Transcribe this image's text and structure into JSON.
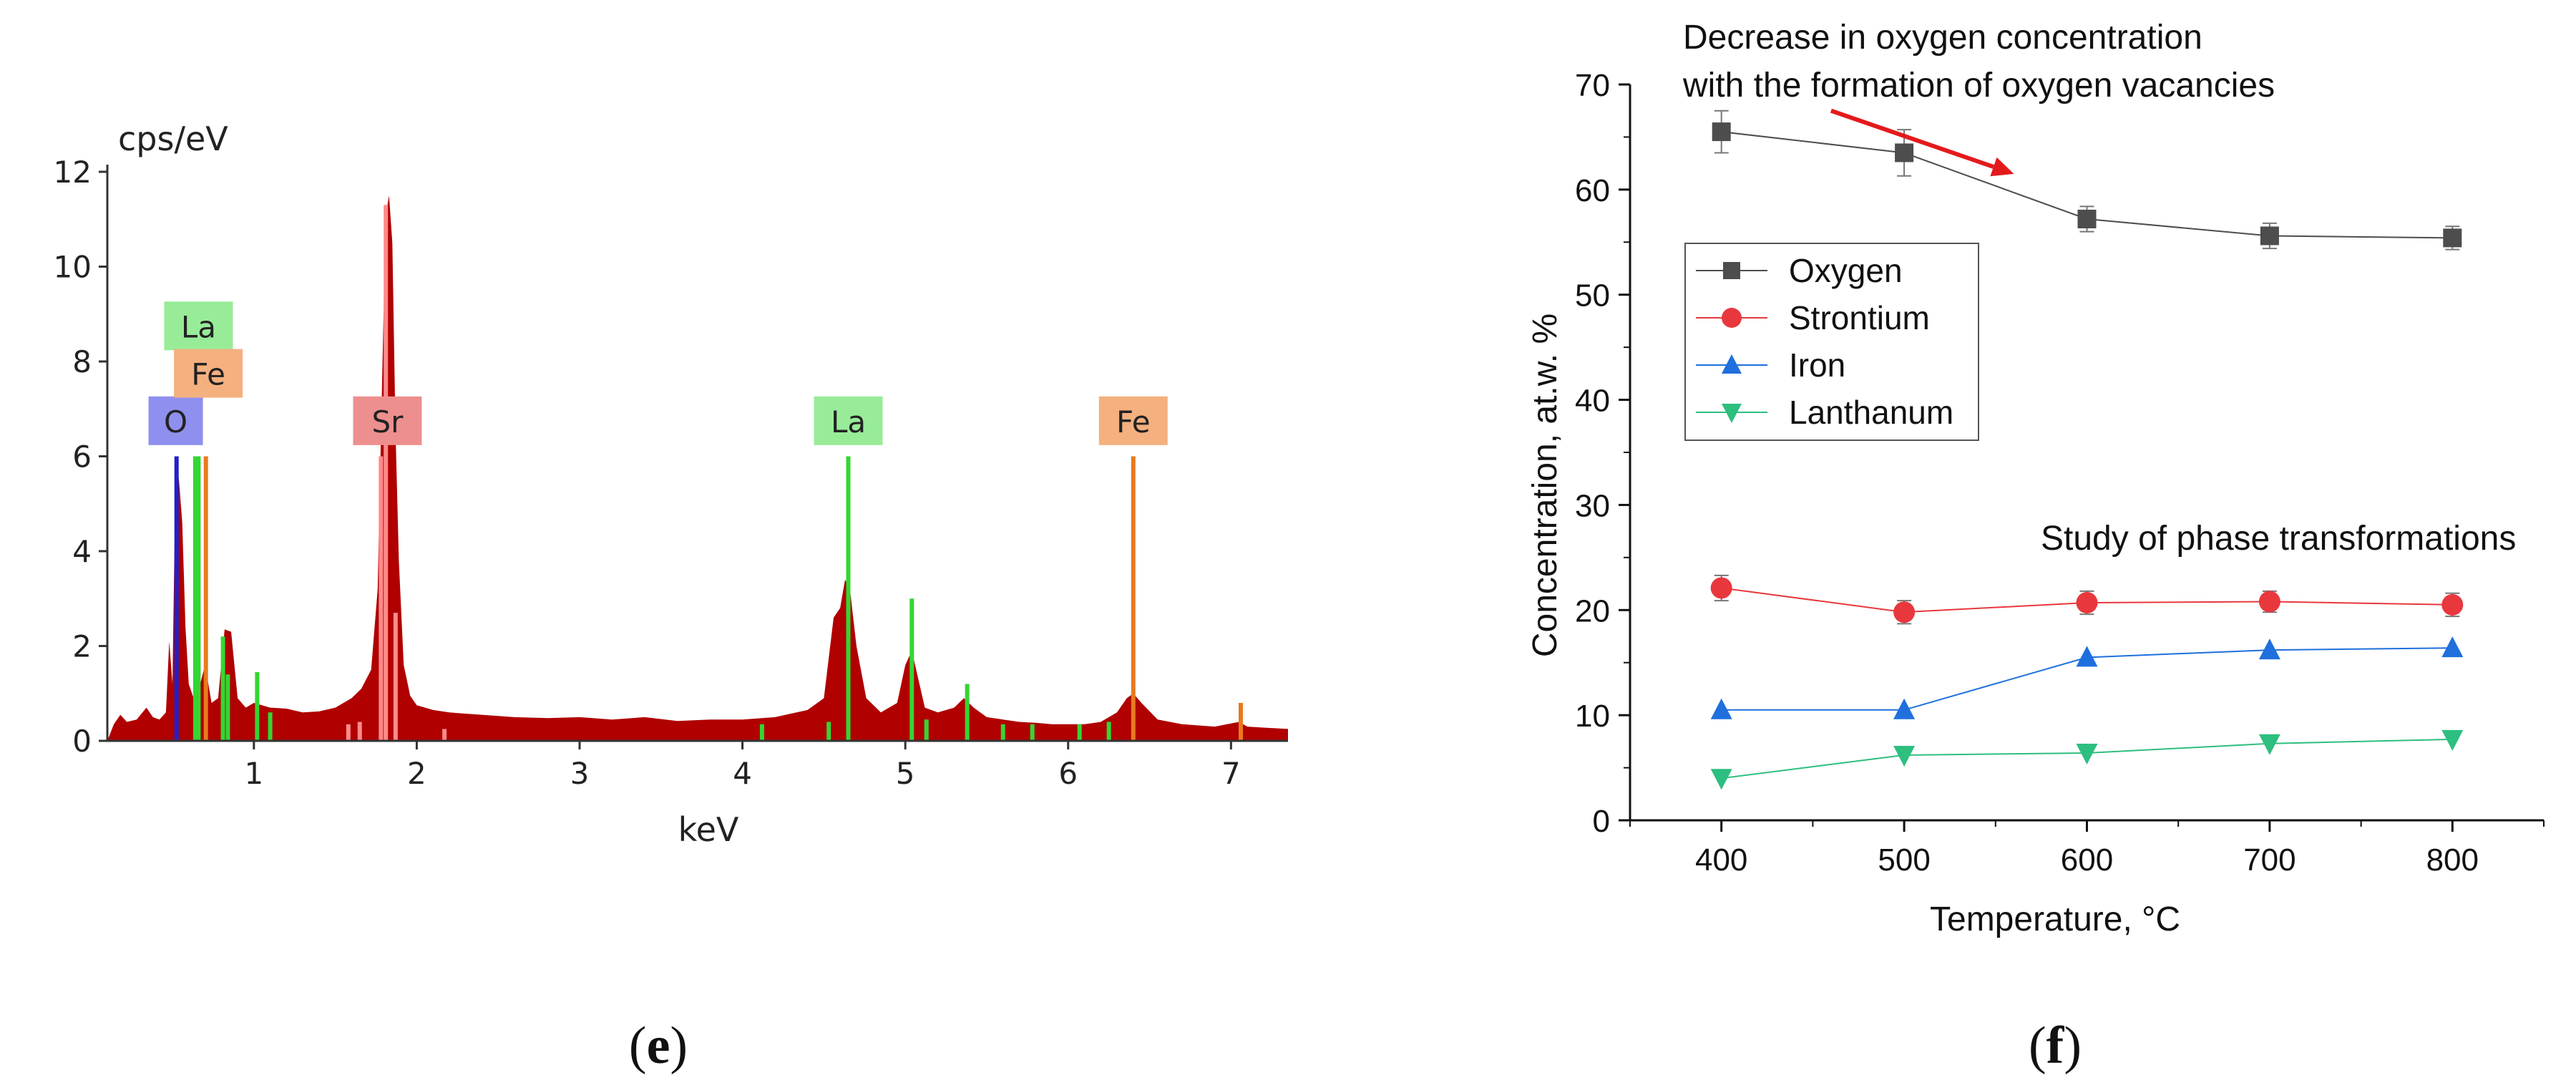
{
  "colors": {
    "eds_fill": "#b00000",
    "oxygen": "#4d4d4d",
    "strontium": "#e8383d",
    "iron": "#1f6fdd",
    "lanthanum": "#2dbf7f",
    "arrow": "#e31a1c",
    "line_O": "#2020c8",
    "line_La": "#33d633",
    "line_Fe": "#e87a1e",
    "line_Sr": "#ff8a8a"
  },
  "chart_data": [
    {
      "type": "area",
      "panel_caption": "e",
      "title": "",
      "ylabel": "cps/eV",
      "xlabel": "keV",
      "xlim": [
        0.1,
        7.35
      ],
      "ylim": [
        0,
        12
      ],
      "x_ticks": [
        1,
        2,
        3,
        4,
        5,
        6,
        7
      ],
      "y_ticks": [
        0,
        2,
        4,
        6,
        8,
        10,
        12
      ],
      "spectrum": [
        [
          0.1,
          0.0
        ],
        [
          0.14,
          0.35
        ],
        [
          0.18,
          0.55
        ],
        [
          0.22,
          0.4
        ],
        [
          0.28,
          0.45
        ],
        [
          0.34,
          0.7
        ],
        [
          0.38,
          0.5
        ],
        [
          0.42,
          0.45
        ],
        [
          0.46,
          0.6
        ],
        [
          0.48,
          2.1
        ],
        [
          0.5,
          1.2
        ],
        [
          0.52,
          5.9
        ],
        [
          0.54,
          5.5
        ],
        [
          0.56,
          4.6
        ],
        [
          0.58,
          2.4
        ],
        [
          0.6,
          1.2
        ],
        [
          0.64,
          0.8
        ],
        [
          0.7,
          1.6
        ],
        [
          0.74,
          0.8
        ],
        [
          0.78,
          0.9
        ],
        [
          0.82,
          2.35
        ],
        [
          0.86,
          2.3
        ],
        [
          0.9,
          0.9
        ],
        [
          0.95,
          0.7
        ],
        [
          1.0,
          0.8
        ],
        [
          1.1,
          0.7
        ],
        [
          1.2,
          0.68
        ],
        [
          1.3,
          0.6
        ],
        [
          1.4,
          0.62
        ],
        [
          1.5,
          0.7
        ],
        [
          1.6,
          0.9
        ],
        [
          1.66,
          1.1
        ],
        [
          1.72,
          1.5
        ],
        [
          1.76,
          3.2
        ],
        [
          1.79,
          8.0
        ],
        [
          1.81,
          11.1
        ],
        [
          1.83,
          11.5
        ],
        [
          1.85,
          10.5
        ],
        [
          1.87,
          6.5
        ],
        [
          1.89,
          3.8
        ],
        [
          1.92,
          1.6
        ],
        [
          1.96,
          0.95
        ],
        [
          2.0,
          0.75
        ],
        [
          2.1,
          0.65
        ],
        [
          2.2,
          0.6
        ],
        [
          2.4,
          0.55
        ],
        [
          2.6,
          0.5
        ],
        [
          2.8,
          0.48
        ],
        [
          3.0,
          0.5
        ],
        [
          3.2,
          0.45
        ],
        [
          3.4,
          0.5
        ],
        [
          3.6,
          0.42
        ],
        [
          3.8,
          0.45
        ],
        [
          4.0,
          0.45
        ],
        [
          4.2,
          0.5
        ],
        [
          4.4,
          0.65
        ],
        [
          4.5,
          0.9
        ],
        [
          4.56,
          2.6
        ],
        [
          4.6,
          2.8
        ],
        [
          4.63,
          3.4
        ],
        [
          4.66,
          3.2
        ],
        [
          4.7,
          2.0
        ],
        [
          4.76,
          0.9
        ],
        [
          4.85,
          0.6
        ],
        [
          4.95,
          0.8
        ],
        [
          5.0,
          1.6
        ],
        [
          5.04,
          1.9
        ],
        [
          5.08,
          1.3
        ],
        [
          5.12,
          0.7
        ],
        [
          5.2,
          0.6
        ],
        [
          5.3,
          0.7
        ],
        [
          5.36,
          0.9
        ],
        [
          5.42,
          0.7
        ],
        [
          5.5,
          0.5
        ],
        [
          5.6,
          0.45
        ],
        [
          5.7,
          0.4
        ],
        [
          5.8,
          0.38
        ],
        [
          5.9,
          0.35
        ],
        [
          6.0,
          0.35
        ],
        [
          6.1,
          0.35
        ],
        [
          6.2,
          0.4
        ],
        [
          6.3,
          0.6
        ],
        [
          6.36,
          0.9
        ],
        [
          6.4,
          1.0
        ],
        [
          6.45,
          0.8
        ],
        [
          6.55,
          0.45
        ],
        [
          6.7,
          0.35
        ],
        [
          6.9,
          0.3
        ],
        [
          7.05,
          0.4
        ],
        [
          7.1,
          0.3
        ],
        [
          7.2,
          0.28
        ],
        [
          7.35,
          0.25
        ]
      ],
      "element_lines": [
        {
          "element": "O",
          "energy": 0.525,
          "height": 6.0
        },
        {
          "element": "La",
          "energy": 0.64,
          "height": 6.0
        },
        {
          "element": "La",
          "energy": 0.66,
          "height": 6.0
        },
        {
          "element": "Fe",
          "energy": 0.705,
          "height": 6.0
        },
        {
          "element": "La",
          "energy": 0.81,
          "height": 2.2
        },
        {
          "element": "La",
          "energy": 0.84,
          "height": 1.4
        },
        {
          "element": "La",
          "energy": 1.02,
          "height": 1.45
        },
        {
          "element": "La",
          "energy": 1.1,
          "height": 0.6
        },
        {
          "element": "Sr",
          "energy": 1.58,
          "height": 0.35
        },
        {
          "element": "Sr",
          "energy": 1.65,
          "height": 0.4
        },
        {
          "element": "Sr",
          "energy": 1.78,
          "height": 6.0
        },
        {
          "element": "Sr",
          "energy": 1.81,
          "height": 11.3
        },
        {
          "element": "Sr",
          "energy": 1.87,
          "height": 2.7
        },
        {
          "element": "Sr",
          "energy": 2.17,
          "height": 0.25
        },
        {
          "element": "La",
          "energy": 4.12,
          "height": 0.35
        },
        {
          "element": "La",
          "energy": 4.53,
          "height": 0.4
        },
        {
          "element": "La",
          "energy": 4.65,
          "height": 6.0
        },
        {
          "element": "La",
          "energy": 5.04,
          "height": 3.0
        },
        {
          "element": "La",
          "energy": 5.13,
          "height": 0.45
        },
        {
          "element": "La",
          "energy": 5.38,
          "height": 1.2
        },
        {
          "element": "La",
          "energy": 5.6,
          "height": 0.35
        },
        {
          "element": "La",
          "energy": 5.78,
          "height": 0.35
        },
        {
          "element": "La",
          "energy": 6.07,
          "height": 0.35
        },
        {
          "element": "La",
          "energy": 6.25,
          "height": 0.4
        },
        {
          "element": "Fe",
          "energy": 6.4,
          "height": 6.0
        },
        {
          "element": "Fe",
          "energy": 7.06,
          "height": 0.8
        }
      ],
      "element_labels": [
        {
          "element": "O",
          "text": "O",
          "energy": 0.52,
          "y": 6.75
        },
        {
          "element": "La",
          "text": "La",
          "energy": 0.66,
          "y": 8.75
        },
        {
          "element": "Fe",
          "text": "Fe",
          "energy": 0.72,
          "y": 7.75
        },
        {
          "element": "Sr",
          "text": "Sr",
          "energy": 1.82,
          "y": 6.75
        },
        {
          "element": "La",
          "text": "La",
          "energy": 4.65,
          "y": 6.75
        },
        {
          "element": "Fe",
          "text": "Fe",
          "energy": 6.4,
          "y": 6.75
        }
      ]
    },
    {
      "type": "line",
      "panel_caption": "f",
      "title": "",
      "xlabel": "Temperature, °C",
      "ylabel": "Concentration, at.w. %",
      "xlim": [
        350,
        850
      ],
      "ylim": [
        0,
        70
      ],
      "x_ticks": [
        400,
        500,
        600,
        700,
        800
      ],
      "y_ticks": [
        0,
        10,
        20,
        30,
        40,
        50,
        60,
        70
      ],
      "x": [
        400,
        500,
        600,
        700,
        800
      ],
      "legend_position": "center-left",
      "series": [
        {
          "name": "Oxygen",
          "marker": "square",
          "color": "#4d4d4d",
          "values": [
            65.5,
            63.5,
            57.2,
            55.6,
            55.4
          ],
          "errors": [
            2.0,
            2.2,
            1.2,
            1.2,
            1.1
          ]
        },
        {
          "name": "Strontium",
          "marker": "circle",
          "color": "#e8383d",
          "values": [
            22.1,
            19.8,
            20.7,
            20.8,
            20.5
          ],
          "errors": [
            1.2,
            1.1,
            1.1,
            1.0,
            1.1
          ]
        },
        {
          "name": "Iron",
          "marker": "triangle-up",
          "color": "#1f6fdd",
          "values": [
            10.5,
            10.5,
            15.5,
            16.2,
            16.4
          ],
          "errors": [
            0,
            0,
            0,
            0,
            0
          ]
        },
        {
          "name": "Lanthanum",
          "marker": "triangle-down",
          "color": "#2dbf7f",
          "values": [
            4.0,
            6.2,
            6.4,
            7.3,
            7.7
          ],
          "errors": [
            0,
            0,
            0,
            0,
            0
          ]
        }
      ],
      "annotations": [
        {
          "text_line1": "Decrease in oxygen concentration",
          "text_line2": "with the formation of oxygen vacancies"
        },
        {
          "text": "Study of phase transformations"
        }
      ],
      "arrow": {
        "from": [
          460,
          67.5
        ],
        "to": [
          560,
          61.5
        ]
      }
    }
  ]
}
